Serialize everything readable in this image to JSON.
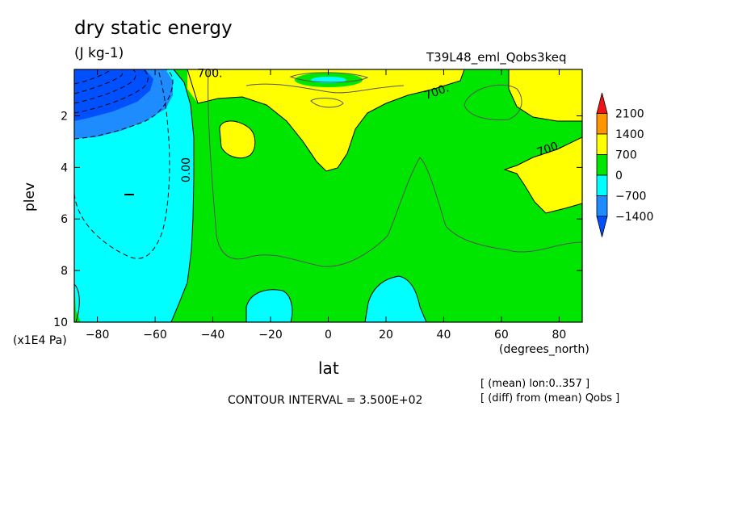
{
  "header": {
    "title": "dry static energy",
    "units": "(J kg-1)",
    "run_name": "T39L48_eml_Qobs3keq"
  },
  "axes": {
    "x_name": "lat",
    "x_unit": "(degrees_north)",
    "y_name": "plev",
    "y_unit": "(x1E4 Pa)"
  },
  "footer": {
    "contour_interval": "CONTOUR INTERVAL = 3.500E+02",
    "note_mean": "[ (mean) lon:0..357 ]",
    "note_diff": "[ (diff) from (mean) Qobs ]"
  },
  "chart_data": {
    "type": "contour",
    "x_ticks": [
      -80,
      -60,
      -40,
      -20,
      0,
      20,
      40,
      60,
      80
    ],
    "x_tick_labels": [
      "−80",
      "−60",
      "−40",
      "−20",
      "0",
      "20",
      "40",
      "60",
      "80"
    ],
    "xlim": [
      -88,
      88
    ],
    "y_ticks": [
      2,
      4,
      6,
      8,
      10
    ],
    "ylim": [
      0.2,
      10
    ],
    "y_inverted": true,
    "contour_labels": [
      {
        "text": "700.",
        "lat": -41,
        "plev": 0.5
      },
      {
        "text": "700.",
        "lat": 38,
        "plev": 1.2
      },
      {
        "text": "700.",
        "lat": 77,
        "plev": 3.4
      },
      {
        "text": "0.00",
        "lat": -48,
        "plev": 4.1
      }
    ],
    "regions": [
      {
        "level": "700..1400",
        "lat": [
          -45,
          50
        ],
        "plev": [
          0.2,
          4.1
        ]
      },
      {
        "level": "700..1400",
        "lat": [
          52,
          88
        ],
        "plev": [
          0.2,
          1.9
        ]
      },
      {
        "level": "700..1400",
        "lat": [
          62,
          88
        ],
        "plev": [
          2.9,
          5.8
        ]
      },
      {
        "level": "700..1400",
        "lat": [
          -37,
          -25
        ],
        "plev": [
          2.3,
          3.6
        ]
      },
      {
        "level": "-1400..-700",
        "lat": [
          -88,
          -55
        ],
        "plev": [
          0.2,
          2.9
        ]
      },
      {
        "level": "-700..0",
        "lat": [
          -88,
          -46
        ],
        "plev": [
          0.2,
          10
        ]
      },
      {
        "level": "-700..0",
        "lat": [
          -28,
          -12
        ],
        "plev": [
          8.7,
          10
        ]
      },
      {
        "level": "-700..0",
        "lat": [
          13,
          35
        ],
        "plev": [
          8.3,
          10
        ]
      },
      {
        "level": "0..700",
        "lat": [
          -12,
          4
        ],
        "plev": [
          0.3,
          0.6
        ]
      }
    ],
    "colorbar": {
      "levels": [
        2100,
        1400,
        700,
        0,
        -700,
        -1400
      ],
      "level_labels": [
        "2100",
        "1400",
        "700",
        "0",
        "−700",
        "−1400"
      ],
      "colors": [
        "#f01414",
        "#ff9600",
        "#ffff00",
        "#00e600",
        "#00ffff",
        "#1e8cff",
        "#0050ff"
      ]
    }
  }
}
